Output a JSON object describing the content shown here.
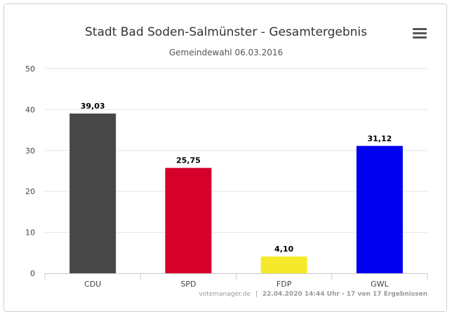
{
  "chart_data": {
    "type": "bar",
    "title": "Stadt Bad Soden-Salmünster - Gesamtergebnis",
    "subtitle": "Gemeindewahl 06.03.2016",
    "categories": [
      "CDU",
      "SPD",
      "FDP",
      "GWL"
    ],
    "values": [
      39.03,
      25.75,
      4.1,
      31.12
    ],
    "value_labels": [
      "39,03",
      "25,75",
      "4,10",
      "31,12"
    ],
    "colors": [
      "#474747",
      "#d6002b",
      "#f5ea2a",
      "#0000f0"
    ],
    "ylim": [
      0,
      50
    ],
    "yticks": [
      0,
      10,
      20,
      30,
      40,
      50
    ],
    "ytick_labels": [
      "0",
      "10",
      "20",
      "30",
      "40",
      "50"
    ],
    "grid": true,
    "credits_site": "votemanager.de",
    "credits_sep": "|",
    "credits_bold": "22.04.2020 14:44 Uhr - 17 von 17 Ergebnissen"
  },
  "menu_icon": "hamburger-menu-icon"
}
